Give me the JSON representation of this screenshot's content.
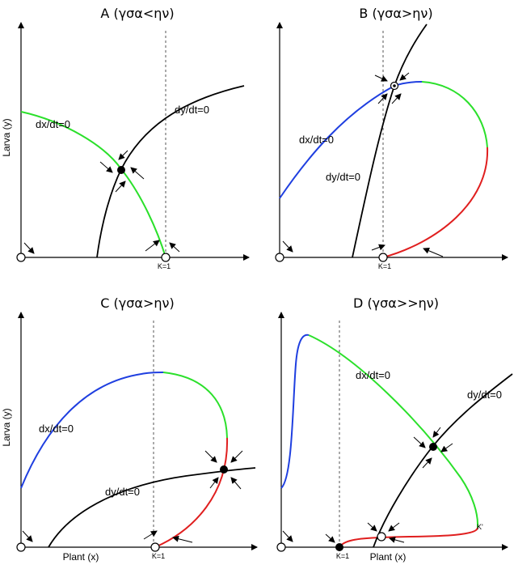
{
  "colors": {
    "black": "#000000",
    "blue": "#1f3fe0",
    "green": "#2be02b",
    "red": "#e01f1f",
    "dashed": "#555555"
  },
  "panels": {
    "A": {
      "title": "A (γσα<ην)",
      "ylabel": "Larva (y)",
      "xlabel": "",
      "labels": {
        "dx": "dx/dt=0",
        "dy": "dy/dt=0",
        "k": "K=1"
      }
    },
    "B": {
      "title": "B (γσα>ην)",
      "ylabel": "",
      "xlabel": "",
      "labels": {
        "dx": "dx/dt=0",
        "dy": "dy/dt=0",
        "k": "K=1"
      }
    },
    "C": {
      "title": "C (γσα>ην)",
      "ylabel": "Larva (y)",
      "xlabel": "Plant (x)",
      "labels": {
        "dx": "dx/dt=0",
        "dy": "dy/dt=0",
        "k": "K=1"
      }
    },
    "D": {
      "title": "D (γσα>>ην)",
      "ylabel": "",
      "xlabel": "Plant (x)",
      "labels": {
        "dx": "dx/dt=0",
        "dy": "dy/dt=0",
        "k": "K=1",
        "kprime": "K'"
      }
    }
  }
}
